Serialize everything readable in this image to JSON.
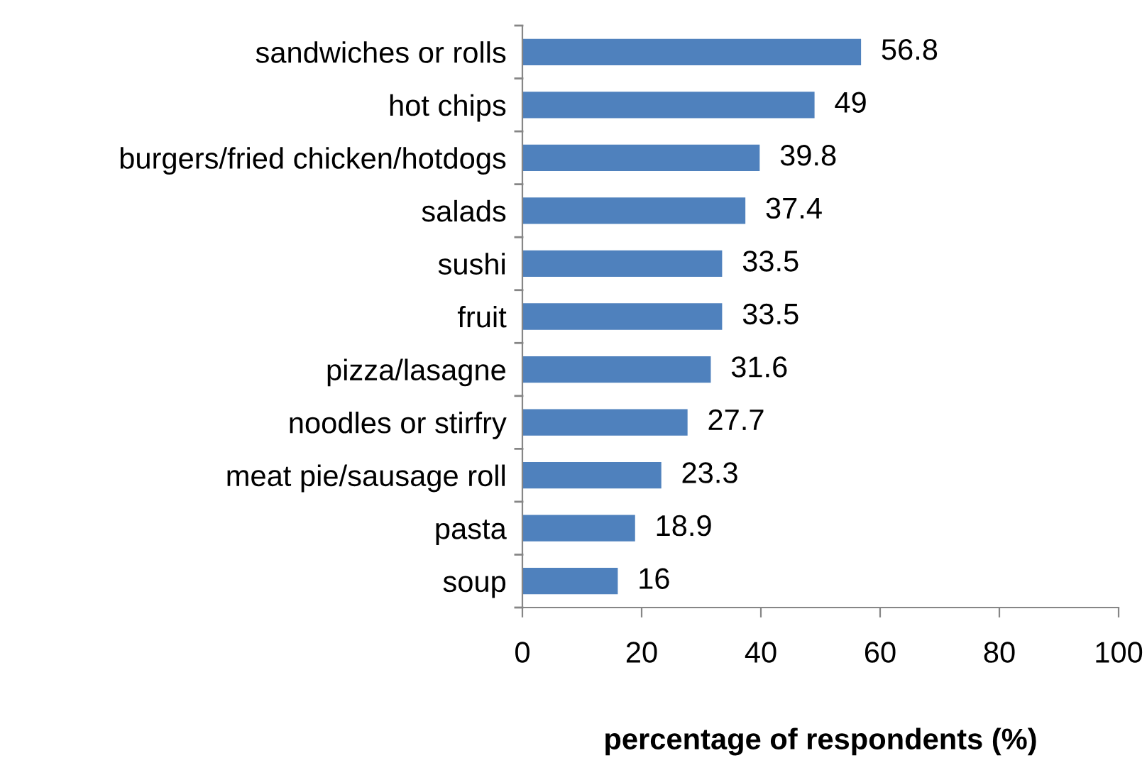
{
  "chart_data": {
    "type": "bar",
    "orientation": "horizontal",
    "xlabel": "percentage of respondents (%)",
    "categories": [
      "sandwiches or rolls",
      "hot chips",
      "burgers/fried chicken/hotdogs",
      "salads",
      "sushi",
      "fruit",
      "pizza/lasagne",
      "noodles or stirfry",
      "meat pie/sausage roll",
      "pasta",
      "soup"
    ],
    "values": [
      56.8,
      49,
      39.8,
      37.4,
      33.5,
      33.5,
      31.6,
      27.7,
      23.3,
      18.9,
      16
    ],
    "color": "#4f81bd",
    "xlim": [
      0,
      100
    ],
    "xticks": [
      0,
      20,
      40,
      60,
      80,
      100
    ],
    "data_labels": true,
    "grid": false,
    "legend": false
  }
}
